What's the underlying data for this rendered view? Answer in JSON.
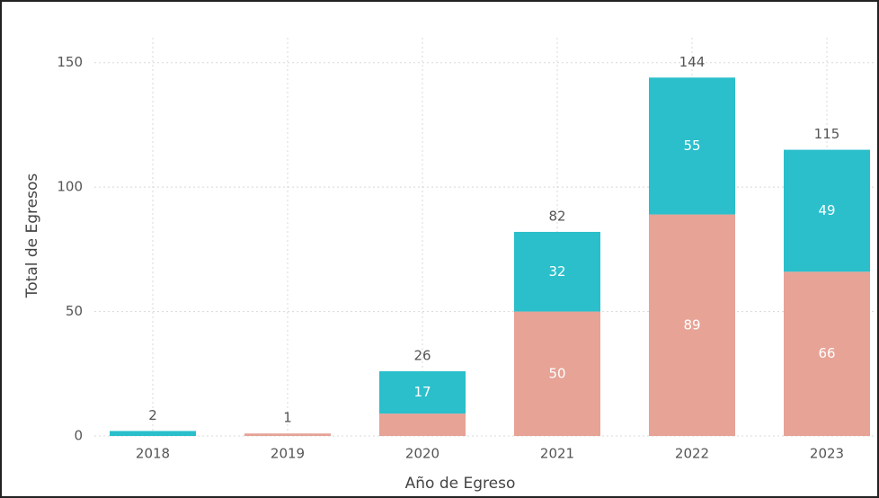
{
  "chart_data": {
    "type": "stacked_bar",
    "x_label": "Año de Egreso",
    "y_label": "Total de Egresos",
    "categories": [
      "2018",
      "2019",
      "2020",
      "2021",
      "2022",
      "2023"
    ],
    "series": [
      {
        "color": "#e6a396",
        "values": [
          null,
          1,
          9,
          50,
          89,
          66
        ],
        "value_labels": [
          null,
          null,
          null,
          "50",
          "89",
          "66"
        ]
      },
      {
        "color": "#2abfcb",
        "values": [
          2,
          null,
          17,
          32,
          55,
          49
        ],
        "value_labels": [
          null,
          null,
          "17",
          "32",
          "55",
          "49"
        ]
      }
    ],
    "totals": [
      2,
      1,
      26,
      82,
      144,
      115
    ],
    "ylim": [
      0,
      160
    ],
    "yticks": [
      0,
      50,
      100,
      150
    ],
    "grid": true
  }
}
